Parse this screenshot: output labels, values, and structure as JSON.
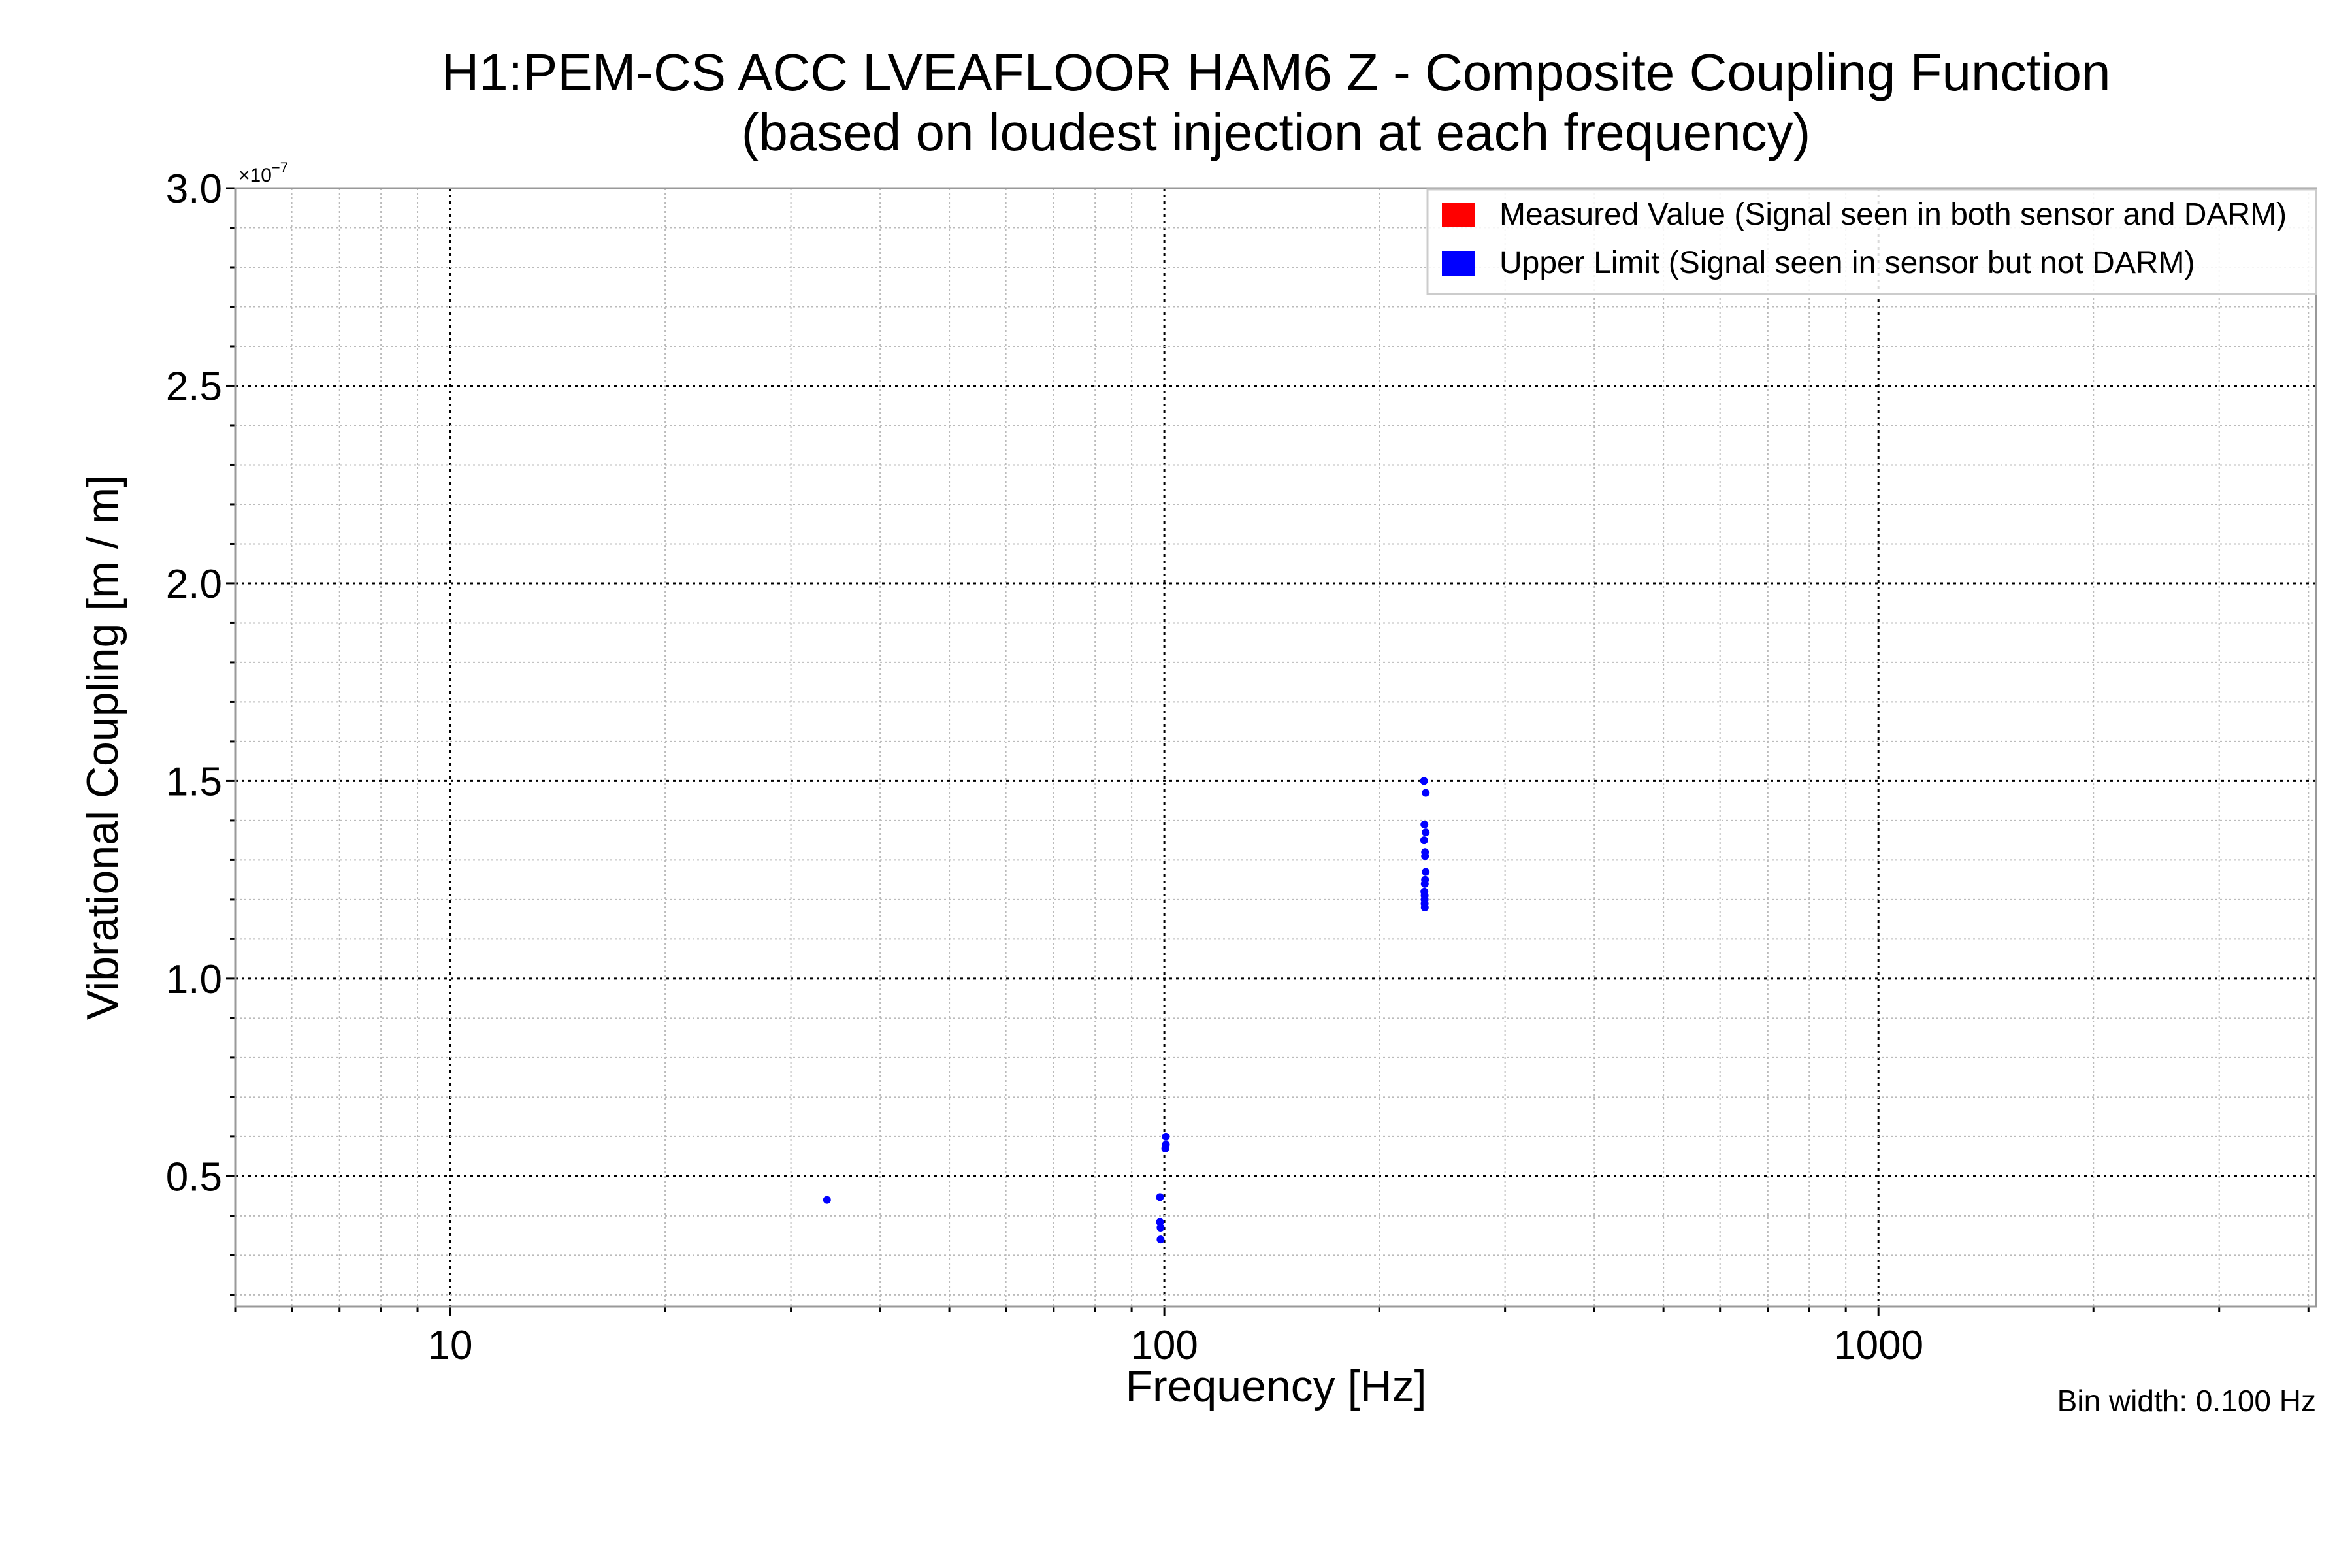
{
  "chart_data": {
    "type": "scatter",
    "title": "H1:PEM-CS ACC LVEAFLOOR HAM6 Z - Composite Coupling Function",
    "subtitle": "(based on loudest injection at each frequency)",
    "xlabel": "Frequency [Hz]",
    "ylabel": "Vibrational Coupling [m / m]",
    "xscale": "log",
    "xlim": [
      5,
      4100
    ],
    "ylim": [
      0.17,
      3.0
    ],
    "y_multiplier_label": "×10",
    "y_multiplier_exp": "−7",
    "xticks": [
      {
        "value": 10,
        "label": "10"
      },
      {
        "value": 100,
        "label": "100"
      },
      {
        "value": 1000,
        "label": "1000"
      }
    ],
    "yticks": [
      {
        "value": 0.5,
        "label": "0.5"
      },
      {
        "value": 1.0,
        "label": "1.0"
      },
      {
        "value": 1.5,
        "label": "1.5"
      },
      {
        "value": 2.0,
        "label": "2.0"
      },
      {
        "value": 2.5,
        "label": "2.5"
      },
      {
        "value": 3.0,
        "label": "3.0"
      }
    ],
    "grid": true,
    "legend_position": "top-right",
    "annotation": "Bin width: 0.100 Hz",
    "series": [
      {
        "name": "Measured Value (Signal seen in both sensor and DARM)",
        "color": "#ff0000",
        "points": []
      },
      {
        "name": "Upper Limit (Signal seen in sensor but not DARM)",
        "color": "#0000ff",
        "points": [
          {
            "x": 33.7,
            "y": 0.44
          },
          {
            "x": 98.6,
            "y": 0.447
          },
          {
            "x": 98.6,
            "y": 0.384
          },
          {
            "x": 98.8,
            "y": 0.37
          },
          {
            "x": 98.8,
            "y": 0.34
          },
          {
            "x": 100.5,
            "y": 0.6
          },
          {
            "x": 100.5,
            "y": 0.58
          },
          {
            "x": 100.3,
            "y": 0.57
          },
          {
            "x": 231.0,
            "y": 1.5
          },
          {
            "x": 232.3,
            "y": 1.47
          },
          {
            "x": 231.3,
            "y": 1.39
          },
          {
            "x": 232.3,
            "y": 1.37
          },
          {
            "x": 231.1,
            "y": 1.35
          },
          {
            "x": 231.8,
            "y": 1.32
          },
          {
            "x": 231.8,
            "y": 1.31
          },
          {
            "x": 232.3,
            "y": 1.27
          },
          {
            "x": 231.8,
            "y": 1.25
          },
          {
            "x": 231.6,
            "y": 1.24
          },
          {
            "x": 231.3,
            "y": 1.22
          },
          {
            "x": 231.5,
            "y": 1.21
          },
          {
            "x": 231.5,
            "y": 1.2
          },
          {
            "x": 231.5,
            "y": 1.19
          },
          {
            "x": 231.6,
            "y": 1.18
          }
        ]
      }
    ]
  }
}
